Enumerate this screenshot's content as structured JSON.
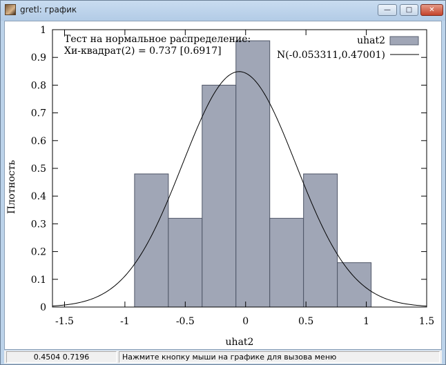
{
  "window": {
    "title": "gretl: график",
    "icon": "gretl-app-icon",
    "buttons": {
      "minimize": "—",
      "maximize": "□",
      "close": "✕"
    }
  },
  "statusbar": {
    "coords": "0.4504 0.7196",
    "message": "Нажмите кнопку мыши на графике для вызова меню"
  },
  "chart_data": {
    "type": "bar",
    "title": "",
    "annotation": [
      "Тест на нормальное распределение:",
      "Хи-квадрат(2) = 0.737 [0.6917]"
    ],
    "xlabel": "uhat2",
    "ylabel": "Плотность",
    "xlim": [
      -1.6,
      1.5
    ],
    "ylim": [
      0,
      1
    ],
    "xticks": [
      "-1.5",
      "-1",
      "-0.5",
      "0",
      "0.5",
      "1",
      "1.5"
    ],
    "yticks": [
      "0",
      "0.1",
      "0.2",
      "0.3",
      "0.4",
      "0.5",
      "0.6",
      "0.7",
      "0.8",
      "0.9",
      "1"
    ],
    "legend_position": "top-right",
    "series": [
      {
        "name": "uhat2",
        "kind": "histogram",
        "color": "#a0a6b6",
        "bins": [
          {
            "x0": -0.92,
            "x1": -0.64,
            "value": 0.48
          },
          {
            "x0": -0.64,
            "x1": -0.36,
            "value": 0.32
          },
          {
            "x0": -0.36,
            "x1": -0.08,
            "value": 0.8
          },
          {
            "x0": -0.08,
            "x1": 0.2,
            "value": 0.96
          },
          {
            "x0": 0.2,
            "x1": 0.48,
            "value": 0.32
          },
          {
            "x0": 0.48,
            "x1": 0.76,
            "value": 0.48
          },
          {
            "x0": 0.76,
            "x1": 1.04,
            "value": 0.16
          }
        ]
      },
      {
        "name": "N(-0.053311,0.47001)",
        "kind": "normal-density-curve",
        "color": "#000000",
        "mean": -0.053311,
        "sd": 0.47001
      }
    ]
  }
}
